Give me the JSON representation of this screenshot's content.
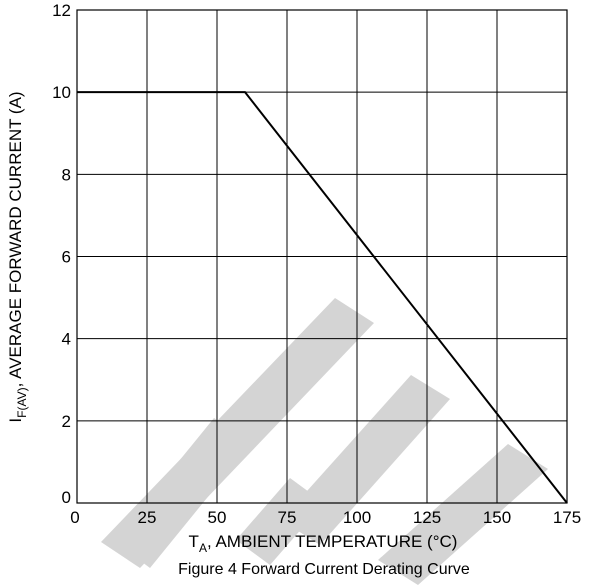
{
  "chart_data": {
    "type": "line",
    "title": "",
    "caption": "Figure 4 Forward Current Derating Curve",
    "xlabel": {
      "main": "T",
      "sub": "A",
      "rest": ", AMBIENT TEMPERATURE (°C)"
    },
    "ylabel": {
      "main": "I",
      "sub": "F(AV)",
      "rest": ", AVERAGE FORWARD CURRENT (A)"
    },
    "xlim": [
      0,
      175
    ],
    "ylim": [
      0,
      12
    ],
    "xticks": [
      0,
      25,
      50,
      75,
      100,
      125,
      150,
      175
    ],
    "yticks": [
      0,
      2,
      4,
      6,
      8,
      10,
      12
    ],
    "grid": true,
    "series": [
      {
        "x": [
          0,
          60,
          175
        ],
        "y": [
          10,
          10,
          0
        ]
      }
    ]
  },
  "watermark": {
    "color": "#d4d4d4"
  }
}
